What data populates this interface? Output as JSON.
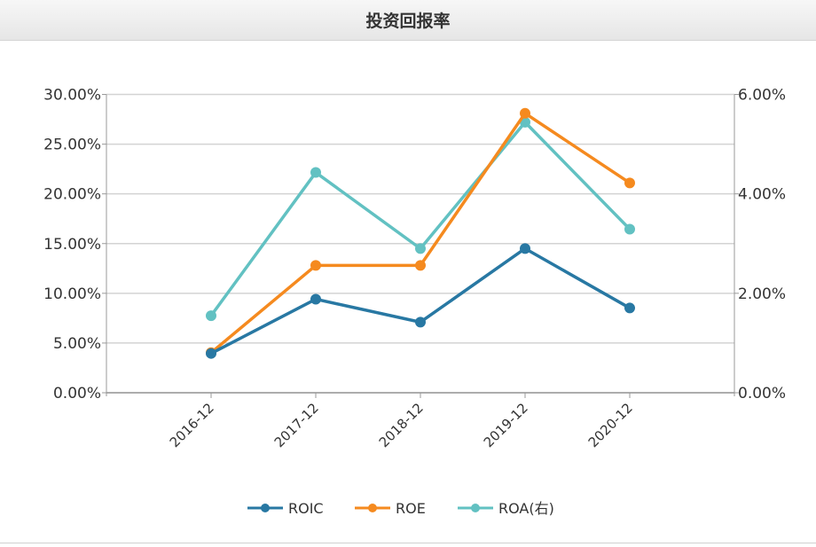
{
  "header": {
    "title": "投资回报率"
  },
  "chart_data": {
    "type": "line",
    "title": "投资回报率",
    "categories": [
      "2016-12",
      "2017-12",
      "2018-12",
      "2019-12",
      "2020-12"
    ],
    "left_axis": {
      "ylim": [
        0,
        30
      ],
      "ticks": [
        "0.00%",
        "5.00%",
        "10.00%",
        "15.00%",
        "20.00%",
        "25.00%",
        "30.00%"
      ]
    },
    "right_axis": {
      "ylim": [
        0,
        6
      ],
      "ticks": [
        "0.00%",
        "2.00%",
        "4.00%",
        "6.00%"
      ]
    },
    "grid": true,
    "legend_position": "bottom",
    "series": [
      {
        "name": "ROIC",
        "axis": "left",
        "color": "#2878a3",
        "values": [
          3.95,
          9.41,
          7.1,
          14.5,
          8.52
        ]
      },
      {
        "name": "ROE",
        "axis": "left",
        "color": "#f58a1f",
        "values": [
          4.03,
          12.8,
          12.8,
          28.1,
          21.1
        ]
      },
      {
        "name": "ROA(右)",
        "axis": "right",
        "color": "#62c1c2",
        "values": [
          1.55,
          4.43,
          2.9,
          5.44,
          3.29
        ]
      }
    ]
  }
}
